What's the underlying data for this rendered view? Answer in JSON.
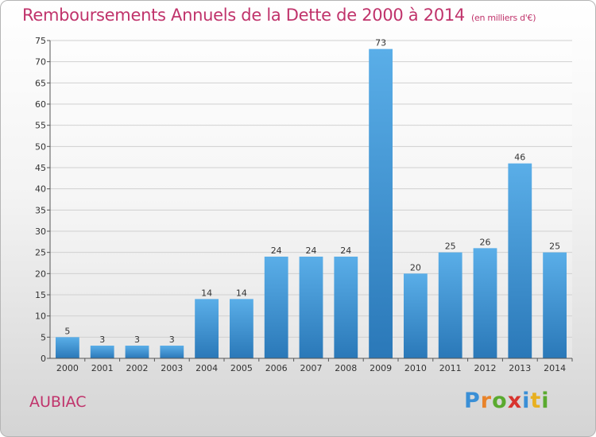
{
  "chart_data": {
    "type": "bar",
    "title": "Remboursements Annuels de la Dette de 2000 à 2014",
    "subtitle": "(en milliers d'€)",
    "categories": [
      "2000",
      "2001",
      "2002",
      "2003",
      "2004",
      "2005",
      "2006",
      "2007",
      "2008",
      "2009",
      "2010",
      "2011",
      "2012",
      "2013",
      "2014"
    ],
    "values": [
      5,
      3,
      3,
      3,
      14,
      14,
      24,
      24,
      24,
      73,
      20,
      25,
      26,
      46,
      25
    ],
    "ylim": [
      0,
      75
    ],
    "yticks": [
      0,
      5,
      10,
      15,
      20,
      25,
      30,
      35,
      40,
      45,
      50,
      55,
      60,
      65,
      70,
      75
    ],
    "grid": true,
    "bar_color_top": "#5aaee8",
    "bar_color_bottom": "#2a78b8"
  },
  "footer": {
    "commune": "AUBIAC",
    "logo": [
      "P",
      "r",
      "o",
      "x",
      "i",
      "t",
      "i"
    ],
    "logo_colors": [
      "#3a8fd6",
      "#e8832a",
      "#5aaa2f",
      "#d8342e",
      "#3a8fd6",
      "#e8b020",
      "#5aaa2f"
    ]
  }
}
